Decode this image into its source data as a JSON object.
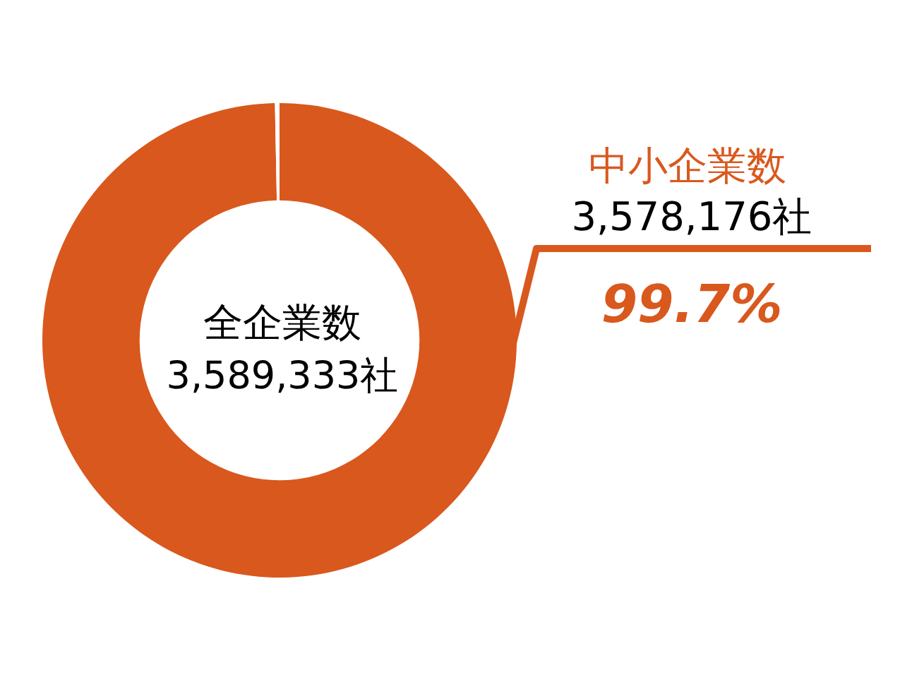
{
  "chart_data": {
    "type": "donut",
    "categories": [
      "中小企業数",
      null
    ],
    "values": [
      3578176,
      11157
    ],
    "colors": [
      "#d9581d",
      "#ffffff"
    ],
    "value_labels": [
      "3,578,176社",
      null
    ],
    "annotations": [
      "全企業数",
      "3,589,333社",
      "99.7%"
    ]
  }
}
